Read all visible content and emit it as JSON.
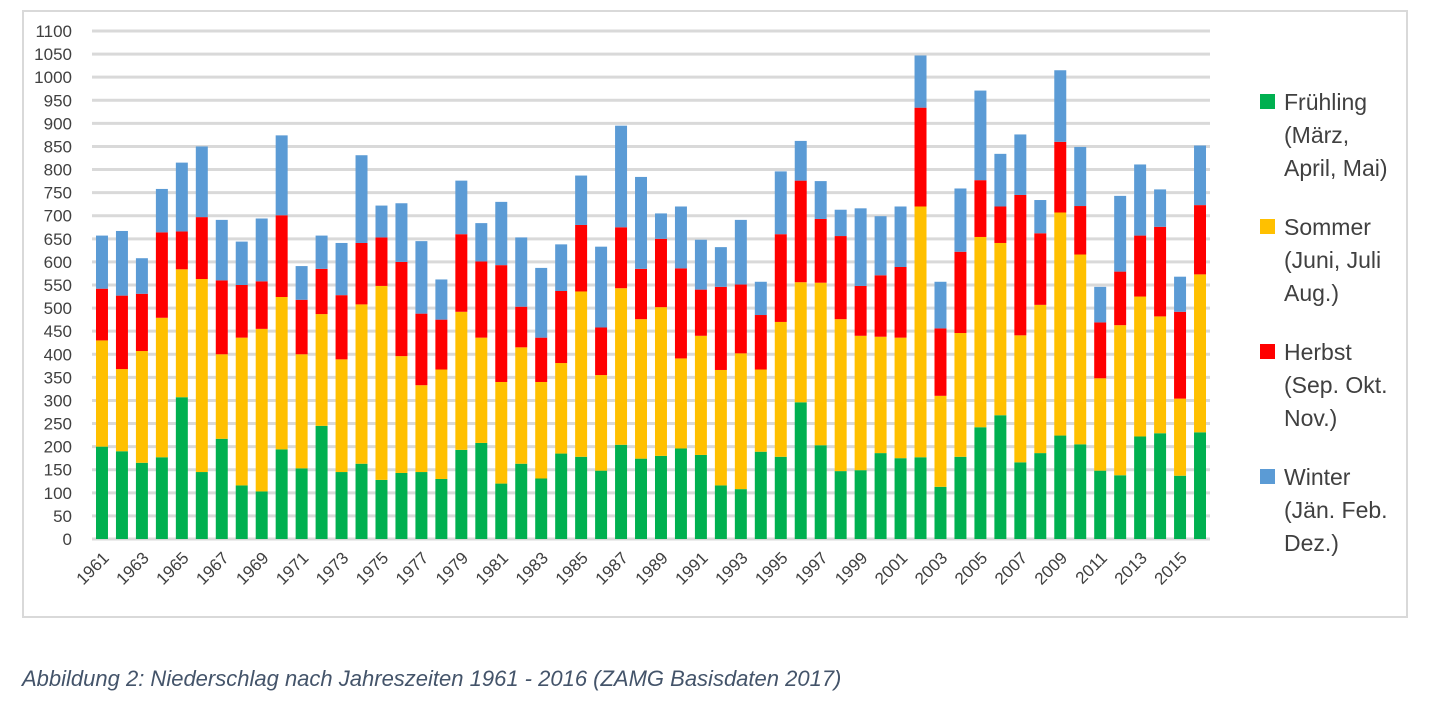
{
  "chart_data": {
    "type": "bar",
    "stacked": true,
    "title": "",
    "xlabel": "",
    "ylabel": "",
    "ylim": [
      0,
      1100
    ],
    "ytick_step": 50,
    "yticks": [
      "0",
      "50",
      "100",
      "150",
      "200",
      "250",
      "300",
      "350",
      "400",
      "450",
      "500",
      "550",
      "600",
      "650",
      "700",
      "750",
      "800",
      "850",
      "900",
      "950",
      "1000",
      "1050",
      "1100"
    ],
    "grid": true,
    "legend_position": "right",
    "categories": [
      "1961",
      "1962",
      "1963",
      "1964",
      "1965",
      "1966",
      "1967",
      "1968",
      "1969",
      "1970",
      "1971",
      "1972",
      "1973",
      "1974",
      "1975",
      "1976",
      "1977",
      "1978",
      "1979",
      "1980",
      "1981",
      "1982",
      "1983",
      "1984",
      "1985",
      "1986",
      "1987",
      "1988",
      "1989",
      "1990",
      "1991",
      "1992",
      "1993",
      "1994",
      "1995",
      "1996",
      "1997",
      "1998",
      "1999",
      "2000",
      "2001",
      "2002",
      "2003",
      "2004",
      "2005",
      "2006",
      "2007",
      "2008",
      "2009",
      "2010",
      "2011",
      "2012",
      "2013",
      "2014",
      "2015",
      "2016"
    ],
    "xtick_labels_shown": [
      "1961",
      "1963",
      "1965",
      "1967",
      "1969",
      "1971",
      "1973",
      "1975",
      "1977",
      "1979",
      "1981",
      "1983",
      "1985",
      "1987",
      "1989",
      "1991",
      "1993",
      "1995",
      "1997",
      "1999",
      "2001",
      "2003",
      "2005",
      "2007",
      "2009",
      "2011",
      "2013",
      "2015"
    ],
    "series": [
      {
        "name": "Frühling (März, April, Mai)",
        "color": "#00b050",
        "values": [
          200,
          190,
          165,
          177,
          307,
          145,
          217,
          116,
          103,
          194,
          153,
          245,
          145,
          163,
          128,
          143,
          145,
          130,
          193,
          208,
          120,
          163,
          131,
          185,
          178,
          148,
          204,
          174,
          180,
          196,
          182,
          116,
          108,
          189,
          178,
          296,
          203,
          147,
          149,
          186,
          175,
          177,
          113,
          178,
          242,
          268,
          166,
          186,
          224,
          205,
          148,
          138,
          222,
          229,
          137,
          231
        ]
      },
      {
        "name": "Sommer (Juni, Juli Aug.)",
        "color": "#ffc000",
        "values": [
          230,
          178,
          242,
          302,
          277,
          418,
          183,
          320,
          352,
          330,
          247,
          242,
          244,
          345,
          420,
          253,
          188,
          237,
          299,
          228,
          220,
          252,
          209,
          196,
          358,
          207,
          339,
          302,
          322,
          195,
          258,
          250,
          294,
          178,
          292,
          260,
          352,
          329,
          291,
          252,
          261,
          543,
          197,
          268,
          412,
          373,
          275,
          321,
          483,
          411,
          200,
          325,
          303,
          253,
          167,
          342
        ]
      },
      {
        "name": "Herbst (Sep. Okt. Nov.)",
        "color": "#ff0000",
        "values": [
          112,
          159,
          124,
          185,
          82,
          134,
          160,
          114,
          103,
          177,
          118,
          98,
          139,
          133,
          105,
          204,
          155,
          108,
          168,
          165,
          253,
          88,
          96,
          156,
          144,
          103,
          132,
          109,
          148,
          195,
          100,
          180,
          149,
          118,
          190,
          220,
          138,
          180,
          108,
          133,
          153,
          214,
          146,
          176,
          123,
          79,
          304,
          155,
          153,
          105,
          121,
          116,
          132,
          194,
          188,
          150
        ]
      },
      {
        "name": "Winter (Jän. Feb. Dez.)",
        "color": "#5b9bd5",
        "values": [
          115,
          140,
          77,
          94,
          149,
          153,
          131,
          94,
          136,
          173,
          73,
          72,
          113,
          190,
          69,
          127,
          157,
          87,
          116,
          83,
          137,
          150,
          151,
          101,
          107,
          175,
          220,
          199,
          55,
          134,
          108,
          86,
          140,
          72,
          136,
          86,
          82,
          57,
          168,
          128,
          131,
          113,
          101,
          137,
          194,
          114,
          131,
          72,
          155,
          128,
          77,
          164,
          154,
          81,
          76,
          129
        ]
      }
    ]
  },
  "legend": [
    {
      "line1": "Frühling",
      "line2": "(März,",
      "line3": "April, Mai)",
      "color": "#00b050"
    },
    {
      "line1": "Sommer",
      "line2": "(Juni, Juli",
      "line3": "Aug.)",
      "color": "#ffc000"
    },
    {
      "line1": "Herbst",
      "line2": "(Sep. Okt.",
      "line3": "Nov.)",
      "color": "#ff0000"
    },
    {
      "line1": "Winter",
      "line2": "(Jän. Feb.",
      "line3": "Dez.)",
      "color": "#5b9bd5"
    }
  ],
  "caption": "Abbildung 2: Niederschlag nach Jahreszeiten 1961 - 2016 (ZAMG Basisdaten 2017)"
}
